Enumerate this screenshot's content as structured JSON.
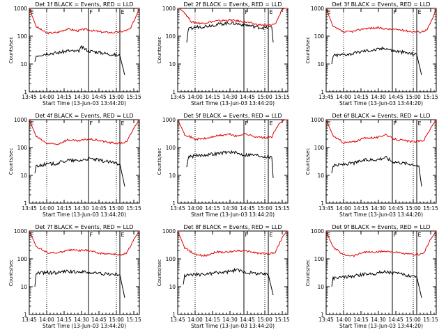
{
  "figure": {
    "ylabel": "Counts/sec",
    "xlabel": "Start Time (13-Jun-03 13:44:20)",
    "black_series": "Events",
    "red_series": "LLD",
    "colors": {
      "events": "#000000",
      "lld": "#e00000",
      "axes": "#000000"
    }
  },
  "chart_data": [
    {
      "type": "line",
      "title": "Det 1f BLACK = Events, RED = LLD",
      "xlabel": "Start Time (13-Jun-03 13:44:20)",
      "ylabel": "Counts/sec",
      "xlim": [
        13.75,
        15.33
      ],
      "ylim": [
        1,
        1000
      ],
      "yscale": "log",
      "x_ticks": [
        "13:45",
        "14:00",
        "14:15",
        "14:30",
        "14:45",
        "15:00",
        "15:15"
      ],
      "y_ticks": [
        "1",
        "10",
        "100",
        "1000"
      ],
      "markers": [
        {
          "label": "E",
          "x": 13.75
        },
        {
          "label": "F",
          "x": 14.6
        },
        {
          "label": "E",
          "x": 15.05
        }
      ],
      "dotted_lines": [
        14.0,
        15.0
      ],
      "series": [
        {
          "name": "LLD",
          "color": "#e00000",
          "x": [
            13.75,
            13.85,
            14.0,
            14.15,
            14.3,
            14.45,
            14.55,
            14.65,
            14.8,
            14.95,
            15.1,
            15.2,
            15.28,
            15.33
          ],
          "y": [
            1000,
            220,
            130,
            135,
            185,
            155,
            180,
            160,
            140,
            135,
            150,
            180,
            500,
            1000
          ]
        },
        {
          "name": "Events",
          "color": "#000000",
          "x": [
            13.83,
            13.85,
            14.0,
            14.15,
            14.3,
            14.45,
            14.5,
            14.6,
            14.8,
            14.95,
            15.05,
            15.12
          ],
          "y": [
            12,
            20,
            24,
            25,
            30,
            28,
            40,
            30,
            25,
            22,
            20,
            4
          ]
        }
      ]
    },
    {
      "type": "line",
      "title": "Det 2f BLACK = Events, RED = LLD",
      "xlabel": "Start Time (13-Jun-03 13:44:20)",
      "ylabel": "Counts/sec",
      "xlim": [
        13.75,
        15.33
      ],
      "ylim": [
        1,
        1000
      ],
      "yscale": "log",
      "x_ticks": [
        "13:45",
        "14:00",
        "14:15",
        "14:30",
        "14:45",
        "15:00",
        "15:15"
      ],
      "y_ticks": [
        "1",
        "10",
        "100",
        "1000"
      ],
      "markers": [
        {
          "label": "F",
          "x": 14.7
        },
        {
          "label": "E",
          "x": 15.05
        }
      ],
      "dotted_lines": [
        14.0,
        15.0
      ],
      "series": [
        {
          "name": "LLD",
          "color": "#e00000",
          "x": [
            13.75,
            13.85,
            13.95,
            14.1,
            14.3,
            14.5,
            14.7,
            14.9,
            15.05,
            15.15,
            15.25,
            15.33
          ],
          "y": [
            1100,
            700,
            320,
            290,
            350,
            380,
            330,
            260,
            240,
            280,
            900,
            1200
          ]
        },
        {
          "name": "Events",
          "color": "#000000",
          "x": [
            13.88,
            13.9,
            14.0,
            14.15,
            14.3,
            14.5,
            14.7,
            14.9,
            15.0,
            15.1,
            15.12
          ],
          "y": [
            60,
            170,
            210,
            230,
            260,
            300,
            260,
            210,
            200,
            210,
            60
          ]
        }
      ]
    },
    {
      "type": "line",
      "title": "Det 3f BLACK = Events, RED = LLD",
      "xlabel": "Start Time (13-Jun-03 13:44:20)",
      "ylabel": "Counts/sec",
      "xlim": [
        13.75,
        15.33
      ],
      "ylim": [
        1,
        1000
      ],
      "yscale": "log",
      "x_ticks": [
        "13:45",
        "14:00",
        "14:15",
        "14:30",
        "14:45",
        "15:00",
        "15:15"
      ],
      "y_ticks": [
        "1",
        "10",
        "100",
        "1000"
      ],
      "markers": [
        {
          "label": "E",
          "x": 13.75
        },
        {
          "label": "F",
          "x": 14.7
        },
        {
          "label": "E",
          "x": 15.05
        }
      ],
      "dotted_lines": [
        14.0,
        15.0
      ],
      "series": [
        {
          "name": "LLD",
          "color": "#e00000",
          "x": [
            13.75,
            13.85,
            14.0,
            14.15,
            14.3,
            14.5,
            14.65,
            14.8,
            14.95,
            15.1,
            15.2,
            15.28,
            15.33
          ],
          "y": [
            1000,
            220,
            140,
            150,
            190,
            200,
            180,
            170,
            150,
            140,
            170,
            450,
            1000
          ]
        },
        {
          "name": "Events",
          "color": "#000000",
          "x": [
            13.83,
            13.85,
            14.0,
            14.15,
            14.3,
            14.45,
            14.6,
            14.7,
            14.8,
            14.95,
            15.05,
            15.12
          ],
          "y": [
            10,
            20,
            22,
            24,
            30,
            32,
            38,
            30,
            28,
            24,
            22,
            4
          ]
        }
      ]
    },
    {
      "type": "line",
      "title": "Det 4f BLACK = Events, RED = LLD",
      "xlabel": "Start Time (13-Jun-03 13:44:20)",
      "ylabel": "Counts/sec",
      "xlim": [
        13.75,
        15.33
      ],
      "ylim": [
        1,
        1000
      ],
      "yscale": "log",
      "x_ticks": [
        "13:45",
        "14:00",
        "14:15",
        "14:30",
        "14:45",
        "15:00",
        "15:15"
      ],
      "y_ticks": [
        "1",
        "10",
        "100",
        "1000"
      ],
      "markers": [
        {
          "label": "E",
          "x": 13.75
        },
        {
          "label": "F",
          "x": 14.6
        },
        {
          "label": "E",
          "x": 15.05
        }
      ],
      "dotted_lines": [
        14.0,
        15.0
      ],
      "series": [
        {
          "name": "LLD",
          "color": "#e00000",
          "x": [
            13.75,
            13.85,
            14.0,
            14.15,
            14.3,
            14.45,
            14.6,
            14.75,
            14.9,
            15.05,
            15.15,
            15.25,
            15.33
          ],
          "y": [
            1000,
            250,
            140,
            130,
            190,
            170,
            200,
            180,
            150,
            140,
            160,
            500,
            1000
          ]
        },
        {
          "name": "Events",
          "color": "#000000",
          "x": [
            13.83,
            13.85,
            14.0,
            14.15,
            14.3,
            14.45,
            14.6,
            14.75,
            14.9,
            15.05,
            15.12
          ],
          "y": [
            12,
            22,
            25,
            27,
            35,
            33,
            40,
            35,
            30,
            26,
            4
          ]
        }
      ]
    },
    {
      "type": "line",
      "title": "Det 5f BLACK = Events, RED = LLD",
      "xlabel": "Start Time (13-Jun-03 13:44:20)",
      "ylabel": "Counts/sec",
      "xlim": [
        13.75,
        15.33
      ],
      "ylim": [
        1,
        1000
      ],
      "yscale": "log",
      "x_ticks": [
        "13:45",
        "14:00",
        "14:15",
        "14:30",
        "14:45",
        "15:00",
        "15:15"
      ],
      "y_ticks": [
        "1",
        "10",
        "100",
        "1000"
      ],
      "markers": [
        {
          "label": "F",
          "x": 14.7
        },
        {
          "label": "E",
          "x": 15.05
        }
      ],
      "dotted_lines": [
        14.0,
        15.0
      ],
      "series": [
        {
          "name": "LLD",
          "color": "#e00000",
          "x": [
            13.75,
            13.85,
            14.0,
            14.15,
            14.3,
            14.5,
            14.6,
            14.7,
            14.85,
            15.0,
            15.1,
            15.2,
            15.33
          ],
          "y": [
            1000,
            300,
            200,
            210,
            260,
            300,
            250,
            320,
            250,
            220,
            240,
            700,
            1200
          ]
        },
        {
          "name": "Events",
          "color": "#000000",
          "x": [
            13.88,
            13.9,
            14.0,
            14.15,
            14.3,
            14.5,
            14.7,
            14.85,
            15.0,
            15.1,
            15.12
          ],
          "y": [
            20,
            45,
            50,
            55,
            60,
            70,
            55,
            55,
            48,
            45,
            8
          ]
        }
      ]
    },
    {
      "type": "line",
      "title": "Det 6f BLACK = Events, RED = LLD",
      "xlabel": "Start Time (13-Jun-03 13:44:20)",
      "ylabel": "Counts/sec",
      "xlim": [
        13.75,
        15.33
      ],
      "ylim": [
        1,
        1000
      ],
      "yscale": "log",
      "x_ticks": [
        "13:45",
        "14:00",
        "14:15",
        "14:30",
        "14:45",
        "15:00",
        "15:15"
      ],
      "y_ticks": [
        "1",
        "10",
        "100",
        "1000"
      ],
      "markers": [
        {
          "label": "E",
          "x": 13.75
        },
        {
          "label": "F",
          "x": 14.7
        },
        {
          "label": "E",
          "x": 15.05
        }
      ],
      "dotted_lines": [
        14.0,
        15.0
      ],
      "series": [
        {
          "name": "LLD",
          "color": "#e00000",
          "x": [
            13.75,
            13.85,
            14.0,
            14.15,
            14.3,
            14.5,
            14.6,
            14.7,
            14.85,
            15.0,
            15.15,
            15.25,
            15.33
          ],
          "y": [
            1000,
            260,
            150,
            160,
            220,
            230,
            300,
            210,
            180,
            160,
            180,
            500,
            1000
          ]
        },
        {
          "name": "Events",
          "color": "#000000",
          "x": [
            13.83,
            13.85,
            14.0,
            14.15,
            14.3,
            14.5,
            14.6,
            14.7,
            14.85,
            15.0,
            15.08,
            15.12
          ],
          "y": [
            12,
            22,
            25,
            28,
            35,
            38,
            45,
            32,
            28,
            25,
            22,
            4
          ]
        }
      ]
    },
    {
      "type": "line",
      "title": "Det 7f BLACK = Events, RED = LLD",
      "xlabel": "Start Time (13-Jun-03 13:44:20)",
      "ylabel": "Counts/sec",
      "xlim": [
        13.75,
        15.33
      ],
      "ylim": [
        1,
        1000
      ],
      "yscale": "log",
      "x_ticks": [
        "13:45",
        "14:00",
        "14:15",
        "14:30",
        "14:45",
        "15:00",
        "15:15"
      ],
      "y_ticks": [
        "1",
        "10",
        "100",
        "1000"
      ],
      "markers": [
        {
          "label": "E",
          "x": 13.75
        },
        {
          "label": "F",
          "x": 14.6
        },
        {
          "label": "E",
          "x": 15.05
        }
      ],
      "dotted_lines": [
        14.0,
        15.0
      ],
      "series": [
        {
          "name": "LLD",
          "color": "#e00000",
          "x": [
            13.75,
            13.85,
            14.0,
            14.15,
            14.3,
            14.45,
            14.6,
            14.75,
            14.9,
            15.05,
            15.15,
            15.25,
            15.33
          ],
          "y": [
            1000,
            280,
            170,
            160,
            210,
            200,
            200,
            160,
            150,
            140,
            160,
            500,
            1000
          ]
        },
        {
          "name": "Events",
          "color": "#000000",
          "x": [
            13.83,
            13.85,
            14.0,
            14.15,
            14.3,
            14.45,
            14.6,
            14.75,
            14.9,
            15.05,
            15.12
          ],
          "y": [
            10,
            30,
            32,
            32,
            35,
            35,
            32,
            30,
            28,
            27,
            4
          ]
        }
      ]
    },
    {
      "type": "line",
      "title": "Det 8f BLACK = Events, RED = LLD",
      "xlabel": "Start Time (13-Jun-03 13:44:20)",
      "ylabel": "Counts/sec",
      "xlim": [
        13.75,
        15.33
      ],
      "ylim": [
        1,
        1000
      ],
      "yscale": "log",
      "x_ticks": [
        "13:45",
        "14:00",
        "14:15",
        "14:30",
        "14:45",
        "15:00",
        "15:15"
      ],
      "y_ticks": [
        "1",
        "10",
        "100",
        "1000"
      ],
      "markers": [
        {
          "label": "F",
          "x": 14.7
        },
        {
          "label": "E",
          "x": 15.05
        }
      ],
      "dotted_lines": [
        14.0,
        15.0
      ],
      "series": [
        {
          "name": "LLD",
          "color": "#e00000",
          "x": [
            13.75,
            13.85,
            14.0,
            14.15,
            14.3,
            14.45,
            14.6,
            14.75,
            14.9,
            15.05,
            15.15,
            15.25,
            15.33
          ],
          "y": [
            1000,
            250,
            140,
            130,
            180,
            170,
            200,
            190,
            160,
            150,
            170,
            600,
            1100
          ]
        },
        {
          "name": "Events",
          "color": "#000000",
          "x": [
            13.83,
            13.85,
            14.0,
            14.15,
            14.3,
            14.45,
            14.6,
            14.75,
            14.9,
            15.05,
            15.12
          ],
          "y": [
            12,
            25,
            27,
            28,
            32,
            33,
            40,
            32,
            30,
            27,
            5
          ]
        }
      ]
    },
    {
      "type": "line",
      "title": "Det 9f BLACK = Events, RED = LLD",
      "xlabel": "Start Time (13-Jun-03 13:44:20)",
      "ylabel": "Counts/sec",
      "xlim": [
        13.75,
        15.33
      ],
      "ylim": [
        1,
        1000
      ],
      "yscale": "log",
      "x_ticks": [
        "13:45",
        "14:00",
        "14:15",
        "14:30",
        "14:45",
        "15:00",
        "15:15"
      ],
      "y_ticks": [
        "1",
        "10",
        "100",
        "1000"
      ],
      "markers": [
        {
          "label": "E",
          "x": 13.75
        },
        {
          "label": "F",
          "x": 14.7
        },
        {
          "label": "E",
          "x": 15.05
        }
      ],
      "dotted_lines": [
        14.0,
        15.0
      ],
      "series": [
        {
          "name": "LLD",
          "color": "#e00000",
          "x": [
            13.75,
            13.85,
            14.0,
            14.15,
            14.3,
            14.45,
            14.6,
            14.75,
            14.9,
            15.05,
            15.15,
            15.25,
            15.33
          ],
          "y": [
            1000,
            260,
            140,
            130,
            180,
            170,
            190,
            170,
            150,
            140,
            160,
            500,
            1000
          ]
        },
        {
          "name": "Events",
          "color": "#000000",
          "x": [
            13.83,
            13.85,
            14.0,
            14.15,
            14.3,
            14.45,
            14.6,
            14.75,
            14.9,
            15.05,
            15.12
          ],
          "y": [
            10,
            20,
            22,
            24,
            28,
            30,
            35,
            30,
            26,
            23,
            4
          ]
        }
      ]
    }
  ]
}
